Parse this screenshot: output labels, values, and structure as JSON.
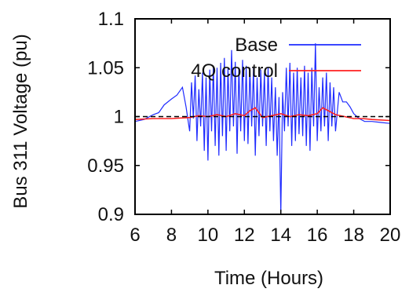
{
  "chart_data": {
    "type": "line",
    "title": "",
    "xlabel": "Time (Hours)",
    "ylabel": "Bus 311 Voltage (pu)",
    "xlim": [
      6,
      20
    ],
    "ylim": [
      0.9,
      1.1
    ],
    "x_ticks": [
      "6",
      "8",
      "10",
      "12",
      "14",
      "16",
      "18",
      "20"
    ],
    "x_tick_values": [
      6,
      8,
      10,
      12,
      14,
      16,
      18,
      20
    ],
    "y_ticks": [
      "0.9",
      "0.95",
      "1",
      "1.05",
      "1.1"
    ],
    "y_tick_values": [
      0.9,
      0.95,
      1.0,
      1.05,
      1.1
    ],
    "reference_line": {
      "y": 1.0,
      "style": "dashed",
      "color": "#000000"
    },
    "legend_position": "top-right",
    "series": [
      {
        "name": "Base",
        "color": "#1f2bff",
        "x": [
          6.0,
          6.5,
          7.0,
          7.3,
          7.6,
          8.0,
          8.3,
          8.6,
          8.8,
          9.0,
          9.1,
          9.2,
          9.3,
          9.4,
          9.5,
          9.6,
          9.7,
          9.8,
          9.9,
          10.0,
          10.1,
          10.2,
          10.3,
          10.4,
          10.5,
          10.6,
          10.7,
          10.8,
          10.9,
          11.0,
          11.1,
          11.2,
          11.3,
          11.4,
          11.5,
          11.6,
          11.7,
          11.8,
          11.9,
          12.0,
          12.1,
          12.2,
          12.3,
          12.4,
          12.5,
          12.6,
          12.7,
          12.8,
          12.9,
          13.0,
          13.1,
          13.2,
          13.3,
          13.4,
          13.5,
          13.6,
          13.7,
          13.8,
          13.9,
          14.0,
          14.1,
          14.2,
          14.3,
          14.4,
          14.5,
          14.6,
          14.7,
          14.8,
          14.9,
          15.0,
          15.1,
          15.2,
          15.3,
          15.4,
          15.5,
          15.6,
          15.7,
          15.8,
          15.9,
          16.0,
          16.1,
          16.2,
          16.3,
          16.4,
          16.5,
          16.6,
          16.7,
          16.8,
          16.9,
          17.0,
          17.2,
          17.4,
          17.6,
          17.8,
          18.0,
          18.3,
          18.6,
          19.0,
          19.5,
          20.0
        ],
        "y": [
          0.995,
          0.997,
          1.002,
          1.004,
          1.012,
          1.018,
          1.022,
          1.03,
          1.01,
          0.985,
          1.035,
          0.998,
          1.042,
          0.975,
          1.028,
          0.99,
          1.045,
          0.965,
          1.04,
          0.955,
          1.048,
          0.985,
          1.052,
          0.97,
          1.05,
          0.96,
          1.055,
          0.98,
          1.06,
          0.965,
          1.05,
          0.985,
          1.068,
          0.99,
          1.056,
          0.962,
          1.05,
          0.985,
          1.058,
          0.975,
          1.052,
          0.972,
          1.05,
          0.99,
          1.05,
          0.96,
          1.04,
          0.98,
          1.048,
          0.99,
          1.045,
          0.97,
          1.05,
          0.985,
          1.04,
          0.975,
          1.03,
          0.96,
          1.02,
          0.9,
          1.025,
          0.985,
          1.05,
          0.99,
          1.055,
          0.97,
          1.045,
          0.975,
          1.05,
          0.982,
          1.04,
          0.98,
          1.052,
          0.97,
          1.045,
          0.965,
          1.05,
          0.99,
          1.075,
          0.975,
          1.03,
          0.985,
          1.04,
          0.99,
          1.045,
          0.975,
          1.035,
          0.99,
          1.03,
          0.985,
          1.025,
          1.015,
          1.015,
          1.01,
          1.003,
          0.998,
          0.995,
          0.995,
          0.994,
          0.993
        ]
      },
      {
        "name": "4Q control",
        "color": "#ff2020",
        "x": [
          6.0,
          7.0,
          8.0,
          9.0,
          9.5,
          10.0,
          10.5,
          11.0,
          11.5,
          12.0,
          12.3,
          12.6,
          13.0,
          13.5,
          14.0,
          14.5,
          15.0,
          15.5,
          16.0,
          16.3,
          16.6,
          17.0,
          17.5,
          18.0,
          18.5,
          19.0,
          20.0
        ],
        "y": [
          0.997,
          0.998,
          0.998,
          0.999,
          1.001,
          1.0,
          1.002,
          1.0,
          1.003,
          1.001,
          1.006,
          1.009,
          0.999,
          1.001,
          1.003,
          1.0,
          1.002,
          1.001,
          1.003,
          1.009,
          1.006,
          1.002,
          1.0,
          0.998,
          0.998,
          0.997,
          0.996
        ]
      }
    ]
  }
}
